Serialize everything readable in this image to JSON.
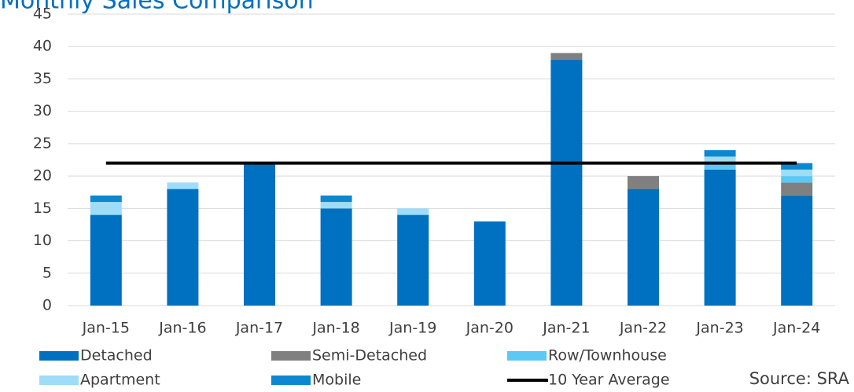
{
  "chart_data": {
    "type": "bar",
    "stacked": true,
    "title": "Monthly Sales Comparison",
    "annotation": "Source: SRA",
    "categories": [
      "Jan-15",
      "Jan-16",
      "Jan-17",
      "Jan-18",
      "Jan-19",
      "Jan-20",
      "Jan-21",
      "Jan-22",
      "Jan-23",
      "Jan-24"
    ],
    "series": [
      {
        "name": "Detached",
        "color": "#0070c0",
        "values": [
          14,
          18,
          22,
          15,
          14,
          13,
          38,
          18,
          21,
          17
        ]
      },
      {
        "name": "Semi-Detached",
        "color": "#808080",
        "values": [
          0,
          0,
          0,
          0,
          0,
          0,
          1,
          2,
          0,
          2
        ]
      },
      {
        "name": "Row/Townhouse",
        "color": "#5bc8f5",
        "values": [
          0,
          0,
          0,
          0,
          0,
          0,
          0,
          0,
          1,
          1
        ]
      },
      {
        "name": "Apartment",
        "color": "#9edcf7",
        "values": [
          2,
          1,
          0,
          1,
          1,
          0,
          0,
          0,
          1,
          1
        ]
      },
      {
        "name": "Mobile",
        "color": "#0d88d0",
        "values": [
          1,
          0,
          0,
          1,
          0,
          0,
          0,
          0,
          1,
          1
        ]
      },
      {
        "name": "10 Year Average",
        "color": "#000000",
        "type": "line",
        "values": [
          22,
          22,
          22,
          22,
          22,
          22,
          22,
          22,
          22,
          22
        ]
      }
    ],
    "ylim": [
      0,
      45
    ],
    "yticks": [
      0,
      5,
      10,
      15,
      20,
      25,
      30,
      35,
      40,
      45
    ],
    "grid": true
  }
}
